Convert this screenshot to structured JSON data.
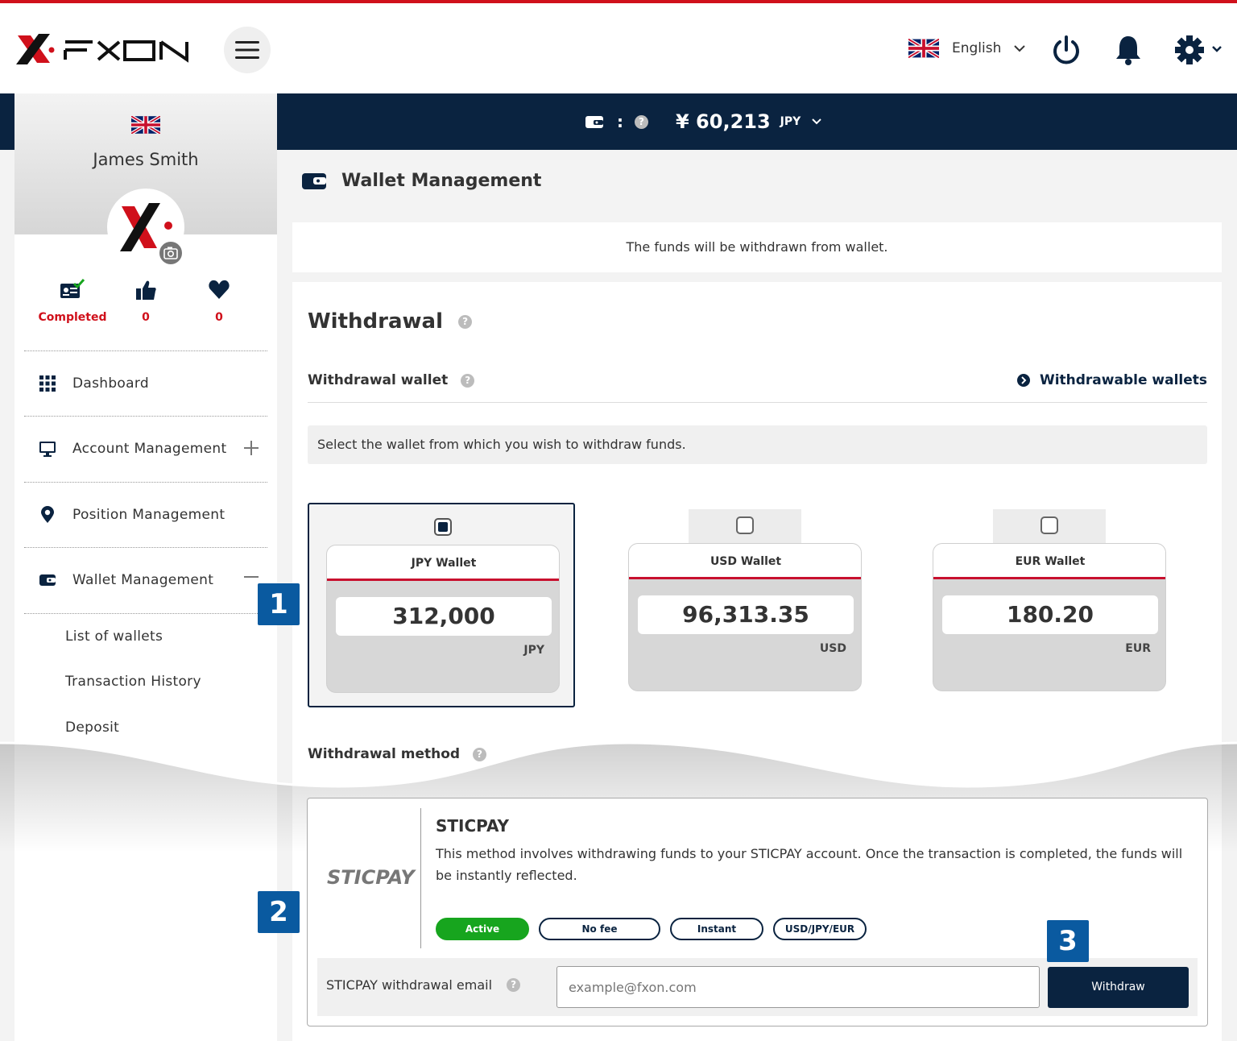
{
  "header": {
    "brand": "FXON",
    "language": "English"
  },
  "balance_bar": {
    "separator": ":",
    "amount": "¥ 60,213",
    "currency": "JPY"
  },
  "sidebar": {
    "user_name": "James Smith",
    "stats": [
      {
        "label": "Completed"
      },
      {
        "label": "0"
      },
      {
        "label": "0"
      }
    ],
    "nav": [
      {
        "label": "Dashboard"
      },
      {
        "label": "Account Management"
      },
      {
        "label": "Position Management"
      },
      {
        "label": "Wallet Management"
      }
    ],
    "subnav": [
      "List of wallets",
      "Transaction History",
      "Deposit"
    ]
  },
  "page": {
    "title": "Wallet Management",
    "notice": "The funds will be withdrawn from wallet.",
    "withdrawal_title": "Withdrawal",
    "wallet_label": "Withdrawal wallet",
    "withdrawable_link": "Withdrawable wallets",
    "select_hint": "Select the wallet from which you wish to withdraw funds.",
    "wallets": [
      {
        "name": "JPY Wallet",
        "value": "312,000",
        "currency": "JPY",
        "selected": true
      },
      {
        "name": "USD Wallet",
        "value": "96,313.35",
        "currency": "USD",
        "selected": false
      },
      {
        "name": "EUR Wallet",
        "value": "180.20",
        "currency": "EUR",
        "selected": false
      }
    ],
    "method_label": "Withdrawal method",
    "method": {
      "logo_text": "STICPAY",
      "title": "STICPAY",
      "description": "This method involves withdrawing funds to your STICPAY account. Once the transaction is completed, the funds will be instantly reflected.",
      "tags": [
        "Active",
        "No fee",
        "Instant",
        "USD/JPY/EUR"
      ],
      "email_label": "STICPAY withdrawal email",
      "email_placeholder": "example@fxon.com",
      "withdraw_button": "Withdraw"
    }
  },
  "annotations": [
    "1",
    "2",
    "3"
  ],
  "colors": {
    "navy": "#0a2340",
    "red": "#d0101b",
    "green": "#17a51e",
    "badge_blue": "#0a5aa0"
  }
}
